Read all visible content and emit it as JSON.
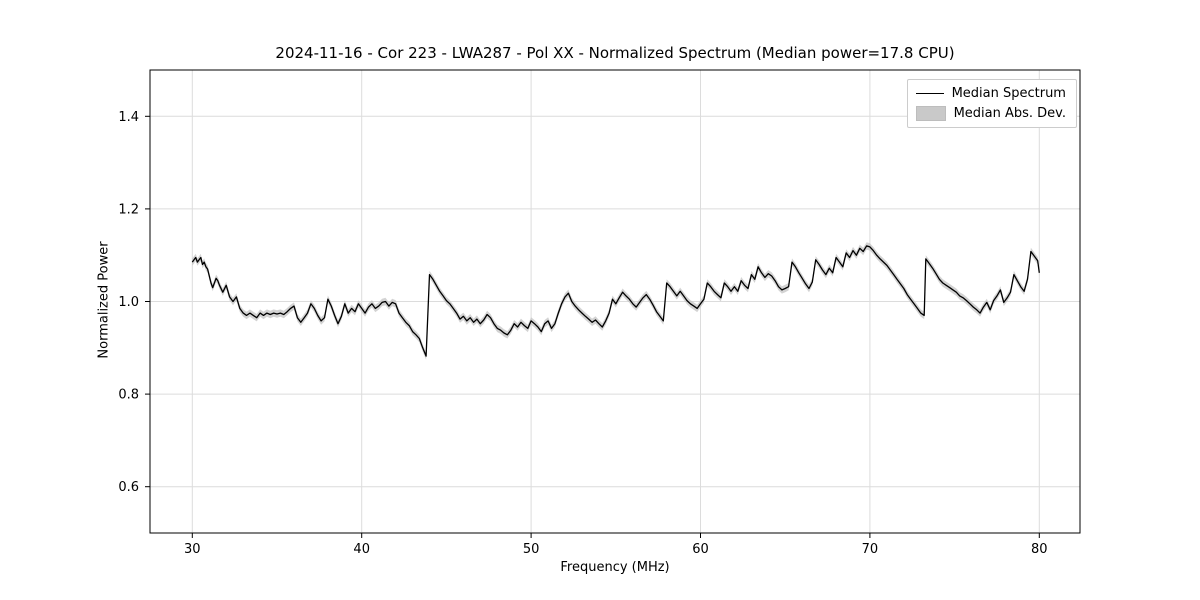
{
  "figure": {
    "title": "2024-11-16 - Cor 223 - LWA287 - Pol XX - Normalized Spectrum (Median power=17.8 CPU)"
  },
  "chart_data": {
    "type": "line",
    "title": "2024-11-16 - Cor 223 - LWA287 - Pol XX - Normalized Spectrum (Median power=17.8 CPU)",
    "xlabel": "Frequency (MHz)",
    "ylabel": "Normalized Power",
    "xlim": [
      27.5,
      82.4
    ],
    "ylim": [
      0.5,
      1.5
    ],
    "xticks": [
      30,
      40,
      50,
      60,
      70,
      80
    ],
    "yticks": [
      0.6,
      0.8,
      1.0,
      1.2,
      1.4
    ],
    "grid": true,
    "grid_color": "#dcdcdc",
    "legend": {
      "position": "upper right",
      "entries": [
        {
          "label": "Median Spectrum",
          "type": "line",
          "color": "#000000"
        },
        {
          "label": "Median Abs. Dev.",
          "type": "patch",
          "color": "#c9c9c9"
        }
      ]
    },
    "band": {
      "name": "Median Abs. Dev.",
      "color": "#c0c0c0",
      "dev": 0.008
    },
    "series": [
      {
        "name": "Median Spectrum",
        "color": "#000000",
        "points": [
          [
            30.0,
            1.085
          ],
          [
            30.1,
            1.09
          ],
          [
            30.2,
            1.095
          ],
          [
            30.3,
            1.085
          ],
          [
            30.4,
            1.09
          ],
          [
            30.5,
            1.095
          ],
          [
            30.6,
            1.08
          ],
          [
            30.7,
            1.085
          ],
          [
            30.8,
            1.075
          ],
          [
            30.9,
            1.07
          ],
          [
            31.0,
            1.055
          ],
          [
            31.1,
            1.04
          ],
          [
            31.2,
            1.03
          ],
          [
            31.4,
            1.05
          ],
          [
            31.5,
            1.045
          ],
          [
            31.6,
            1.035
          ],
          [
            31.8,
            1.02
          ],
          [
            32.0,
            1.035
          ],
          [
            32.2,
            1.01
          ],
          [
            32.4,
            1.0
          ],
          [
            32.6,
            1.01
          ],
          [
            32.8,
            0.985
          ],
          [
            33.0,
            0.975
          ],
          [
            33.2,
            0.97
          ],
          [
            33.4,
            0.975
          ],
          [
            33.6,
            0.97
          ],
          [
            33.8,
            0.965
          ],
          [
            34.0,
            0.975
          ],
          [
            34.2,
            0.97
          ],
          [
            34.4,
            0.975
          ],
          [
            34.6,
            0.972
          ],
          [
            34.8,
            0.975
          ],
          [
            35.0,
            0.973
          ],
          [
            35.2,
            0.975
          ],
          [
            35.4,
            0.972
          ],
          [
            35.6,
            0.978
          ],
          [
            35.8,
            0.985
          ],
          [
            36.0,
            0.99
          ],
          [
            36.2,
            0.965
          ],
          [
            36.4,
            0.955
          ],
          [
            36.6,
            0.965
          ],
          [
            36.8,
            0.975
          ],
          [
            37.0,
            0.995
          ],
          [
            37.2,
            0.985
          ],
          [
            37.4,
            0.97
          ],
          [
            37.6,
            0.958
          ],
          [
            37.8,
            0.965
          ],
          [
            38.0,
            1.005
          ],
          [
            38.2,
            0.99
          ],
          [
            38.4,
            0.97
          ],
          [
            38.6,
            0.952
          ],
          [
            38.8,
            0.968
          ],
          [
            39.0,
            0.995
          ],
          [
            39.2,
            0.975
          ],
          [
            39.4,
            0.985
          ],
          [
            39.6,
            0.978
          ],
          [
            39.8,
            0.995
          ],
          [
            40.0,
            0.985
          ],
          [
            40.2,
            0.975
          ],
          [
            40.4,
            0.988
          ],
          [
            40.6,
            0.995
          ],
          [
            40.8,
            0.985
          ],
          [
            41.0,
            0.99
          ],
          [
            41.2,
            0.998
          ],
          [
            41.4,
            1.0
          ],
          [
            41.6,
            0.99
          ],
          [
            41.8,
            0.998
          ],
          [
            42.0,
            0.995
          ],
          [
            42.2,
            0.975
          ],
          [
            42.4,
            0.965
          ],
          [
            42.6,
            0.955
          ],
          [
            42.8,
            0.948
          ],
          [
            43.0,
            0.935
          ],
          [
            43.2,
            0.928
          ],
          [
            43.4,
            0.92
          ],
          [
            43.6,
            0.9
          ],
          [
            43.8,
            0.882
          ],
          [
            44.0,
            1.058
          ],
          [
            44.2,
            1.048
          ],
          [
            44.4,
            1.035
          ],
          [
            44.6,
            1.022
          ],
          [
            44.8,
            1.012
          ],
          [
            45.0,
            1.002
          ],
          [
            45.2,
            0.995
          ],
          [
            45.4,
            0.985
          ],
          [
            45.6,
            0.975
          ],
          [
            45.8,
            0.962
          ],
          [
            46.0,
            0.968
          ],
          [
            46.2,
            0.958
          ],
          [
            46.4,
            0.965
          ],
          [
            46.6,
            0.955
          ],
          [
            46.8,
            0.962
          ],
          [
            47.0,
            0.952
          ],
          [
            47.2,
            0.96
          ],
          [
            47.4,
            0.972
          ],
          [
            47.6,
            0.965
          ],
          [
            47.8,
            0.952
          ],
          [
            48.0,
            0.942
          ],
          [
            48.2,
            0.938
          ],
          [
            48.4,
            0.932
          ],
          [
            48.6,
            0.928
          ],
          [
            48.8,
            0.938
          ],
          [
            49.0,
            0.952
          ],
          [
            49.2,
            0.945
          ],
          [
            49.4,
            0.955
          ],
          [
            49.6,
            0.948
          ],
          [
            49.8,
            0.942
          ],
          [
            50.0,
            0.958
          ],
          [
            50.2,
            0.952
          ],
          [
            50.4,
            0.945
          ],
          [
            50.6,
            0.935
          ],
          [
            50.8,
            0.952
          ],
          [
            51.0,
            0.958
          ],
          [
            51.2,
            0.942
          ],
          [
            51.4,
            0.952
          ],
          [
            51.6,
            0.975
          ],
          [
            51.8,
            0.995
          ],
          [
            52.0,
            1.01
          ],
          [
            52.2,
            1.018
          ],
          [
            52.4,
            1.0
          ],
          [
            52.6,
            0.99
          ],
          [
            52.8,
            0.982
          ],
          [
            53.0,
            0.975
          ],
          [
            53.2,
            0.968
          ],
          [
            53.4,
            0.962
          ],
          [
            53.6,
            0.955
          ],
          [
            53.8,
            0.96
          ],
          [
            54.0,
            0.952
          ],
          [
            54.2,
            0.945
          ],
          [
            54.4,
            0.958
          ],
          [
            54.6,
            0.975
          ],
          [
            54.8,
            1.005
          ],
          [
            55.0,
            0.995
          ],
          [
            55.2,
            1.008
          ],
          [
            55.4,
            1.02
          ],
          [
            55.6,
            1.012
          ],
          [
            55.8,
            1.005
          ],
          [
            56.0,
            0.995
          ],
          [
            56.2,
            0.988
          ],
          [
            56.4,
            0.998
          ],
          [
            56.6,
            1.008
          ],
          [
            56.8,
            1.015
          ],
          [
            57.0,
            1.005
          ],
          [
            57.2,
            0.992
          ],
          [
            57.4,
            0.978
          ],
          [
            57.6,
            0.968
          ],
          [
            57.8,
            0.958
          ],
          [
            58.0,
            1.04
          ],
          [
            58.2,
            1.032
          ],
          [
            58.4,
            1.022
          ],
          [
            58.6,
            1.012
          ],
          [
            58.8,
            1.022
          ],
          [
            59.0,
            1.012
          ],
          [
            59.2,
            1.002
          ],
          [
            59.4,
            0.995
          ],
          [
            59.6,
            0.99
          ],
          [
            59.8,
            0.985
          ],
          [
            60.0,
            0.995
          ],
          [
            60.2,
            1.005
          ],
          [
            60.4,
            1.04
          ],
          [
            60.6,
            1.032
          ],
          [
            60.8,
            1.022
          ],
          [
            61.0,
            1.015
          ],
          [
            61.2,
            1.008
          ],
          [
            61.4,
            1.04
          ],
          [
            61.6,
            1.032
          ],
          [
            61.8,
            1.022
          ],
          [
            62.0,
            1.032
          ],
          [
            62.2,
            1.022
          ],
          [
            62.4,
            1.045
          ],
          [
            62.6,
            1.035
          ],
          [
            62.8,
            1.028
          ],
          [
            63.0,
            1.058
          ],
          [
            63.2,
            1.048
          ],
          [
            63.4,
            1.075
          ],
          [
            63.6,
            1.062
          ],
          [
            63.8,
            1.052
          ],
          [
            64.0,
            1.06
          ],
          [
            64.2,
            1.055
          ],
          [
            64.4,
            1.045
          ],
          [
            64.6,
            1.032
          ],
          [
            64.8,
            1.025
          ],
          [
            65.0,
            1.028
          ],
          [
            65.2,
            1.032
          ],
          [
            65.4,
            1.085
          ],
          [
            65.6,
            1.075
          ],
          [
            65.8,
            1.062
          ],
          [
            66.0,
            1.05
          ],
          [
            66.2,
            1.038
          ],
          [
            66.4,
            1.028
          ],
          [
            66.6,
            1.042
          ],
          [
            66.8,
            1.09
          ],
          [
            67.0,
            1.08
          ],
          [
            67.2,
            1.068
          ],
          [
            67.4,
            1.058
          ],
          [
            67.6,
            1.072
          ],
          [
            67.8,
            1.062
          ],
          [
            68.0,
            1.095
          ],
          [
            68.2,
            1.085
          ],
          [
            68.4,
            1.075
          ],
          [
            68.6,
            1.105
          ],
          [
            68.8,
            1.095
          ],
          [
            69.0,
            1.11
          ],
          [
            69.2,
            1.1
          ],
          [
            69.4,
            1.115
          ],
          [
            69.6,
            1.108
          ],
          [
            69.8,
            1.12
          ],
          [
            70.0,
            1.118
          ],
          [
            70.2,
            1.11
          ],
          [
            70.4,
            1.1
          ],
          [
            70.6,
            1.092
          ],
          [
            70.8,
            1.085
          ],
          [
            71.0,
            1.078
          ],
          [
            71.2,
            1.068
          ],
          [
            71.4,
            1.058
          ],
          [
            71.6,
            1.048
          ],
          [
            71.8,
            1.038
          ],
          [
            72.0,
            1.028
          ],
          [
            72.2,
            1.015
          ],
          [
            72.4,
            1.005
          ],
          [
            72.6,
            0.995
          ],
          [
            72.8,
            0.985
          ],
          [
            73.0,
            0.975
          ],
          [
            73.2,
            0.97
          ],
          [
            73.3,
            1.092
          ],
          [
            73.5,
            1.082
          ],
          [
            73.7,
            1.072
          ],
          [
            73.9,
            1.06
          ],
          [
            74.1,
            1.048
          ],
          [
            74.3,
            1.04
          ],
          [
            74.5,
            1.035
          ],
          [
            74.7,
            1.03
          ],
          [
            74.9,
            1.025
          ],
          [
            75.1,
            1.02
          ],
          [
            75.3,
            1.012
          ],
          [
            75.5,
            1.008
          ],
          [
            75.7,
            1.002
          ],
          [
            75.9,
            0.995
          ],
          [
            76.1,
            0.988
          ],
          [
            76.3,
            0.982
          ],
          [
            76.5,
            0.975
          ],
          [
            76.7,
            0.988
          ],
          [
            76.9,
            0.998
          ],
          [
            77.1,
            0.982
          ],
          [
            77.3,
            1.002
          ],
          [
            77.5,
            1.012
          ],
          [
            77.7,
            1.025
          ],
          [
            77.9,
            0.998
          ],
          [
            78.1,
            1.008
          ],
          [
            78.3,
            1.02
          ],
          [
            78.5,
            1.058
          ],
          [
            78.7,
            1.045
          ],
          [
            78.9,
            1.032
          ],
          [
            79.1,
            1.022
          ],
          [
            79.3,
            1.048
          ],
          [
            79.5,
            1.108
          ],
          [
            79.7,
            1.098
          ],
          [
            79.9,
            1.088
          ],
          [
            80.0,
            1.062
          ]
        ]
      }
    ]
  }
}
